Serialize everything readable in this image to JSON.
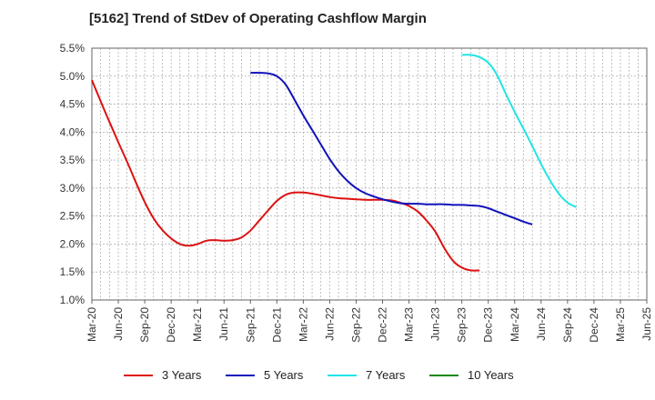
{
  "chart_data": {
    "type": "line",
    "title": "[5162]  Trend of StDev of Operating Cashflow Margin",
    "xlabel": "",
    "ylabel": "",
    "ylim": [
      1.0,
      5.5
    ],
    "yticks": [
      "1.0%",
      "1.5%",
      "2.0%",
      "2.5%",
      "3.0%",
      "3.5%",
      "4.0%",
      "4.5%",
      "5.0%",
      "5.5%"
    ],
    "xticks": [
      "Mar-20",
      "Jun-20",
      "Sep-20",
      "Dec-20",
      "Mar-21",
      "Jun-21",
      "Sep-21",
      "Dec-21",
      "Mar-22",
      "Jun-22",
      "Sep-22",
      "Dec-22",
      "Mar-23",
      "Jun-23",
      "Sep-23",
      "Dec-23",
      "Mar-24",
      "Jun-24",
      "Sep-24",
      "Dec-24",
      "Mar-25",
      "Jun-25"
    ],
    "grid": true,
    "legend_position": "bottom",
    "series": [
      {
        "name": "3 Years",
        "color": "#dd1111",
        "start_index": 0,
        "values": [
          4.93,
          4.55,
          4.18,
          3.82,
          3.47,
          3.1,
          2.75,
          2.46,
          2.25,
          2.1,
          2.0,
          1.97,
          2.0,
          2.06,
          2.07,
          2.06,
          2.07,
          2.12,
          2.24,
          2.42,
          2.6,
          2.77,
          2.88,
          2.92,
          2.92,
          2.9,
          2.87,
          2.84,
          2.82,
          2.81,
          2.8,
          2.79,
          2.79,
          2.79,
          2.78,
          2.74,
          2.68,
          2.58,
          2.42,
          2.22,
          1.93,
          1.7,
          1.58,
          1.53,
          1.53
        ]
      },
      {
        "name": "5 Years",
        "color": "#1111bb",
        "start_index": 18,
        "values": [
          5.06,
          5.06,
          5.05,
          5.0,
          4.85,
          4.58,
          4.3,
          4.04,
          3.78,
          3.52,
          3.3,
          3.13,
          3.0,
          2.91,
          2.85,
          2.8,
          2.76,
          2.73,
          2.72,
          2.72,
          2.71,
          2.71,
          2.71,
          2.7,
          2.7,
          2.69,
          2.68,
          2.64,
          2.58,
          2.52,
          2.46,
          2.4,
          2.35
        ]
      },
      {
        "name": "7 Years",
        "color": "#22e5e5",
        "start_index": 42,
        "values": [
          5.38,
          5.38,
          5.34,
          5.24,
          5.02,
          4.68,
          4.36,
          4.06,
          3.75,
          3.43,
          3.14,
          2.9,
          2.74,
          2.66
        ]
      },
      {
        "name": "10 Years",
        "color": "#118811",
        "start_index": 0,
        "values": []
      }
    ]
  }
}
